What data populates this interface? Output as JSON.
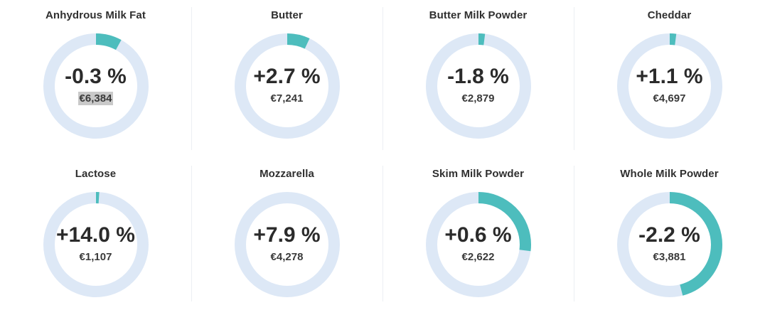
{
  "colors": {
    "ring_bg": "#dde8f6",
    "ring_fill": "#4dbdbd",
    "highlight": "#c9c9c9"
  },
  "products": [
    {
      "name": "Anhydrous Milk Fat",
      "change": "-0.3 %",
      "price": "€6,384",
      "fill_fraction": 0.08,
      "highlighted": true
    },
    {
      "name": "Butter",
      "change": "+2.7 %",
      "price": "€7,241",
      "fill_fraction": 0.07
    },
    {
      "name": "Butter Milk Powder",
      "change": "-1.8 %",
      "price": "€2,879",
      "fill_fraction": 0.02
    },
    {
      "name": "Cheddar",
      "change": "+1.1 %",
      "price": "€4,697",
      "fill_fraction": 0.02
    },
    {
      "name": "Lactose",
      "change": "+14.0 %",
      "price": "€1,107",
      "fill_fraction": 0.01
    },
    {
      "name": "Mozzarella",
      "change": "+7.9 %",
      "price": "€4,278",
      "fill_fraction": 0
    },
    {
      "name": "Skim Milk Powder",
      "change": "+0.6 %",
      "price": "€2,622",
      "fill_fraction": 0.27
    },
    {
      "name": "Whole Milk Powder",
      "change": "-2.2 %",
      "price": "€3,881",
      "fill_fraction": 0.46
    }
  ]
}
